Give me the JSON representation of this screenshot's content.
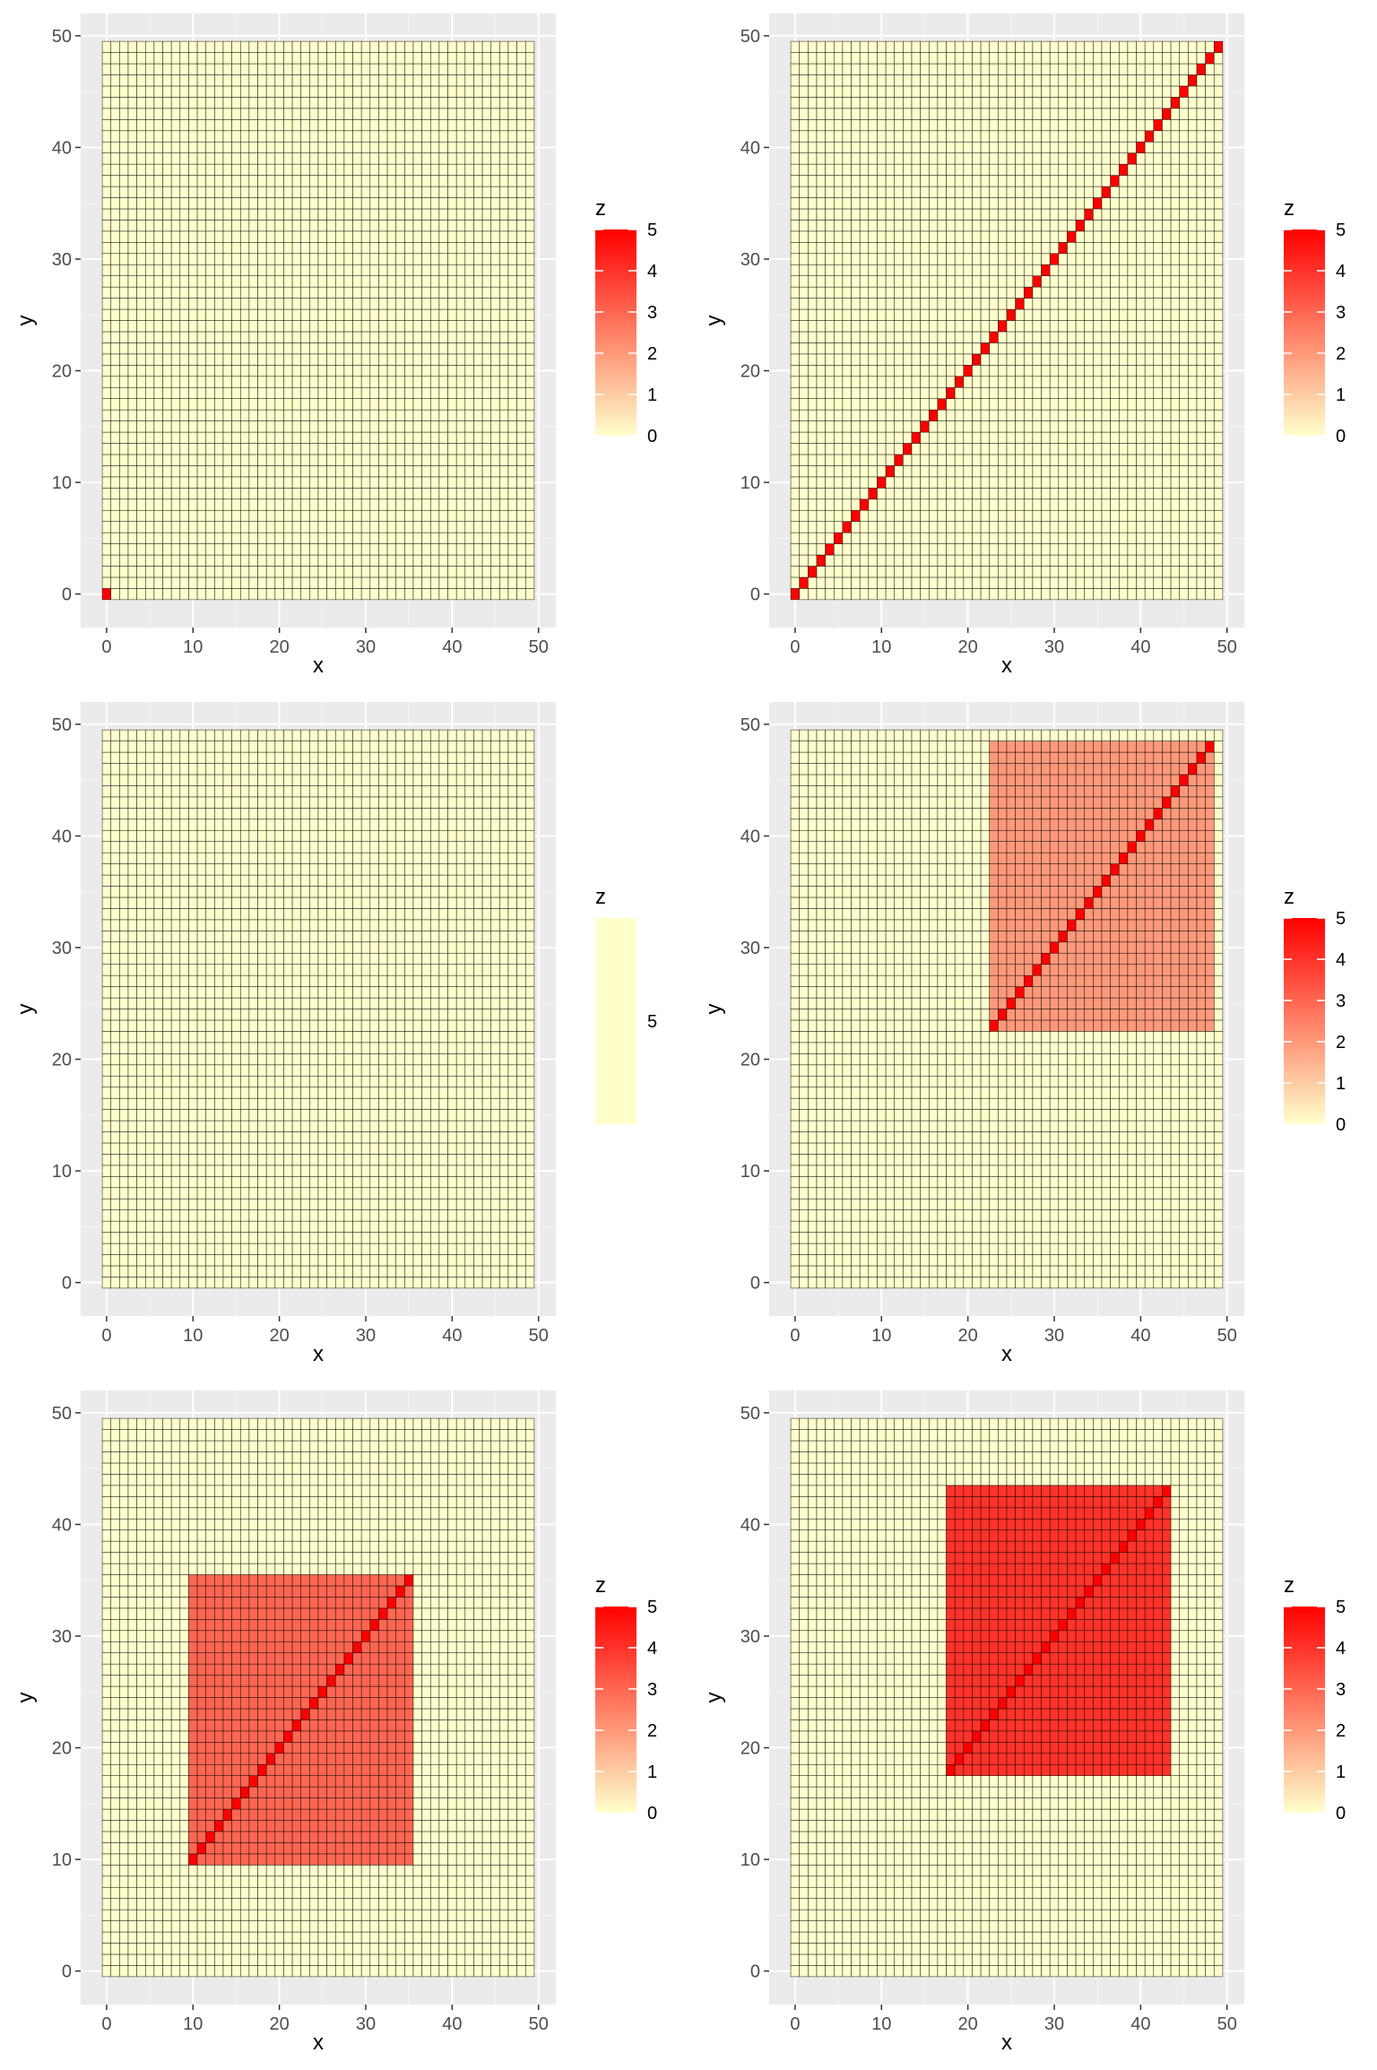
{
  "chart_data": [
    {
      "type": "heatmap",
      "xlabel": "x",
      "ylabel": "y",
      "xlim": [
        -0.5,
        49.5
      ],
      "ylim": [
        -0.5,
        49.5
      ],
      "xticks": [
        0,
        10,
        20,
        30,
        40,
        50
      ],
      "yticks": [
        0,
        10,
        20,
        30,
        40,
        50
      ],
      "grid": "0..49 x 0..49 cells, default z=0",
      "square": null,
      "diagonal": {
        "from": 0,
        "to": 0,
        "z": 5
      },
      "legend": {
        "title": "z",
        "ticks": [
          0,
          1,
          2,
          3,
          4,
          5
        ],
        "low_color": "#ffffcc",
        "high_color": "#ff0000",
        "position": "right"
      }
    },
    {
      "type": "heatmap",
      "xlabel": "x",
      "ylabel": "y",
      "xlim": [
        -0.5,
        49.5
      ],
      "ylim": [
        -0.5,
        49.5
      ],
      "xticks": [
        0,
        10,
        20,
        30,
        40,
        50
      ],
      "yticks": [
        0,
        10,
        20,
        30,
        40,
        50
      ],
      "grid": "0..49 x 0..49 cells, default z=0",
      "square": null,
      "diagonal": {
        "from": 0,
        "to": 49,
        "z": 5
      },
      "legend": {
        "title": "z",
        "ticks": [
          0,
          1,
          2,
          3,
          4,
          5
        ],
        "low_color": "#ffffcc",
        "high_color": "#ff0000",
        "position": "right"
      }
    },
    {
      "type": "heatmap",
      "xlabel": "x",
      "ylabel": "y",
      "xlim": [
        -0.5,
        49.5
      ],
      "ylim": [
        -0.5,
        49.5
      ],
      "xticks": [
        0,
        10,
        20,
        30,
        40,
        50
      ],
      "yticks": [
        0,
        10,
        20,
        30,
        40,
        50
      ],
      "grid": "0..49 x 0..49 cells, uniform z",
      "uniform_z": 5,
      "uniform_color": "#ffffcc",
      "square": null,
      "diagonal": null,
      "legend": {
        "title": "z",
        "ticks": [
          5
        ],
        "low_color": "#ffffcc",
        "high_color": "#ffffcc",
        "position": "right"
      }
    },
    {
      "type": "heatmap",
      "xlabel": "x",
      "ylabel": "y",
      "xlim": [
        -0.5,
        49.5
      ],
      "ylim": [
        -0.5,
        49.5
      ],
      "xticks": [
        0,
        10,
        20,
        30,
        40,
        50
      ],
      "yticks": [
        0,
        10,
        20,
        30,
        40,
        50
      ],
      "grid": "0..49 x 0..49 cells, default z=0",
      "square": {
        "x_from": 23,
        "x_to": 48,
        "y_from": 23,
        "y_to": 48,
        "z": 2
      },
      "diagonal": {
        "from": 23,
        "to": 48,
        "z": 5
      },
      "legend": {
        "title": "z",
        "ticks": [
          0,
          1,
          2,
          3,
          4,
          5
        ],
        "low_color": "#ffffcc",
        "high_color": "#ff0000",
        "position": "right"
      }
    },
    {
      "type": "heatmap",
      "xlabel": "x",
      "ylabel": "y",
      "xlim": [
        -0.5,
        49.5
      ],
      "ylim": [
        -0.5,
        49.5
      ],
      "xticks": [
        0,
        10,
        20,
        30,
        40,
        50
      ],
      "yticks": [
        0,
        10,
        20,
        30,
        40,
        50
      ],
      "grid": "0..49 x 0..49 cells, default z=0",
      "square": {
        "x_from": 10,
        "x_to": 35,
        "y_from": 10,
        "y_to": 35,
        "z": 3
      },
      "diagonal": {
        "from": 10,
        "to": 35,
        "z": 5
      },
      "legend": {
        "title": "z",
        "ticks": [
          0,
          1,
          2,
          3,
          4,
          5
        ],
        "low_color": "#ffffcc",
        "high_color": "#ff0000",
        "position": "right"
      }
    },
    {
      "type": "heatmap",
      "xlabel": "x",
      "ylabel": "y",
      "xlim": [
        -0.5,
        49.5
      ],
      "ylim": [
        -0.5,
        49.5
      ],
      "xticks": [
        0,
        10,
        20,
        30,
        40,
        50
      ],
      "yticks": [
        0,
        10,
        20,
        30,
        40,
        50
      ],
      "grid": "0..49 x 0..49 cells, default z=0",
      "square": {
        "x_from": 18,
        "x_to": 43,
        "y_from": 18,
        "y_to": 43,
        "z": 4
      },
      "diagonal": {
        "from": 18,
        "to": 43,
        "z": 5
      },
      "legend": {
        "title": "z",
        "ticks": [
          0,
          1,
          2,
          3,
          4,
          5
        ],
        "low_color": "#ffffcc",
        "high_color": "#ff0000",
        "position": "right"
      }
    }
  ]
}
